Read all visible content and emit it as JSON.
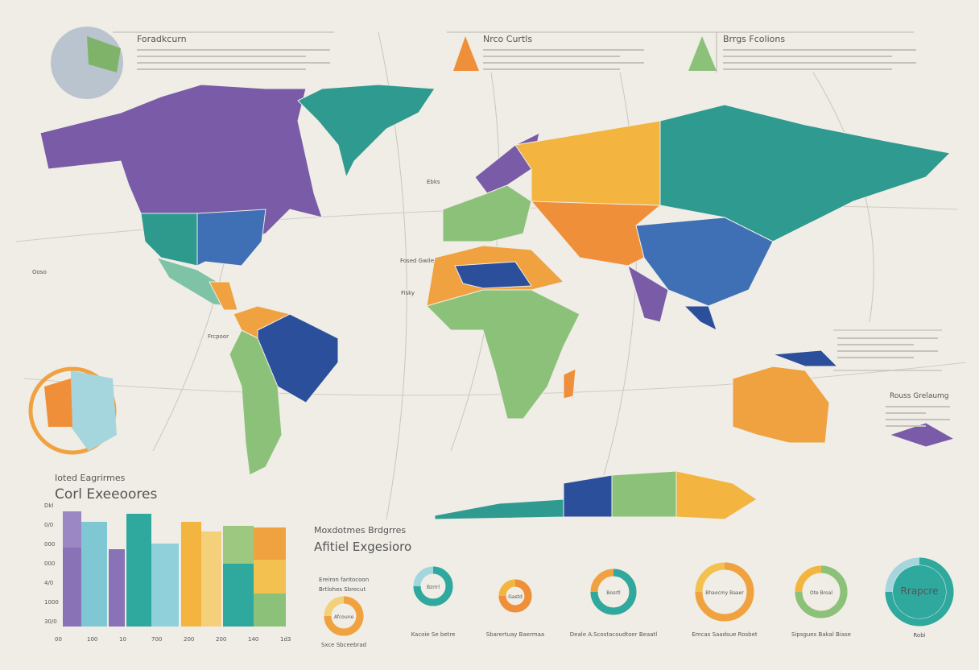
{
  "header": {
    "left_title": "Foradkcurn",
    "center_title": "Nrco Curtls",
    "right_title": "Brrgs Fcolions"
  },
  "map_labels": [
    "Ebks",
    "Fosed Gwile",
    "Fisky",
    "Frcpoor",
    "Ooso",
    "Rouss Grelaumg"
  ],
  "bar_panel": {
    "subtitle": "Ioted Eagrirmes",
    "title": "Corl Exeeoores",
    "y_labels": [
      "Dkl",
      "0/0",
      "000",
      "000",
      "4/0",
      "1000",
      "30/0"
    ],
    "x_labels": [
      "00",
      "100",
      "10",
      "700",
      "200",
      "200",
      "140",
      "1d3"
    ]
  },
  "donut_panel": {
    "subtitle": "Moxdotmes Brdgrres",
    "title": "Afitiel Exgesioro",
    "legend": [
      "Ereiron fantocoon",
      "Brtlohes Sbrecut"
    ],
    "donuts": [
      {
        "label": "Afcoune",
        "caption": "Sxce Sbceebrad"
      },
      {
        "label": "Bzrrrl",
        "caption": "Kacoie Se betre"
      },
      {
        "label": "Gastd",
        "caption": "Sbarertuay Baermaa"
      },
      {
        "label": "Bosrtl",
        "caption": "Deale A.Scostacoudtoer Beaatl"
      },
      {
        "label": "Bhaocmy Baaer",
        "caption": "Emcas Saadsue Rosbet"
      },
      {
        "label": "Ote Broal",
        "caption": "Sipsgues Bakal Biase"
      },
      {
        "label": "Rrapcre",
        "caption": "Robi"
      }
    ]
  }
}
